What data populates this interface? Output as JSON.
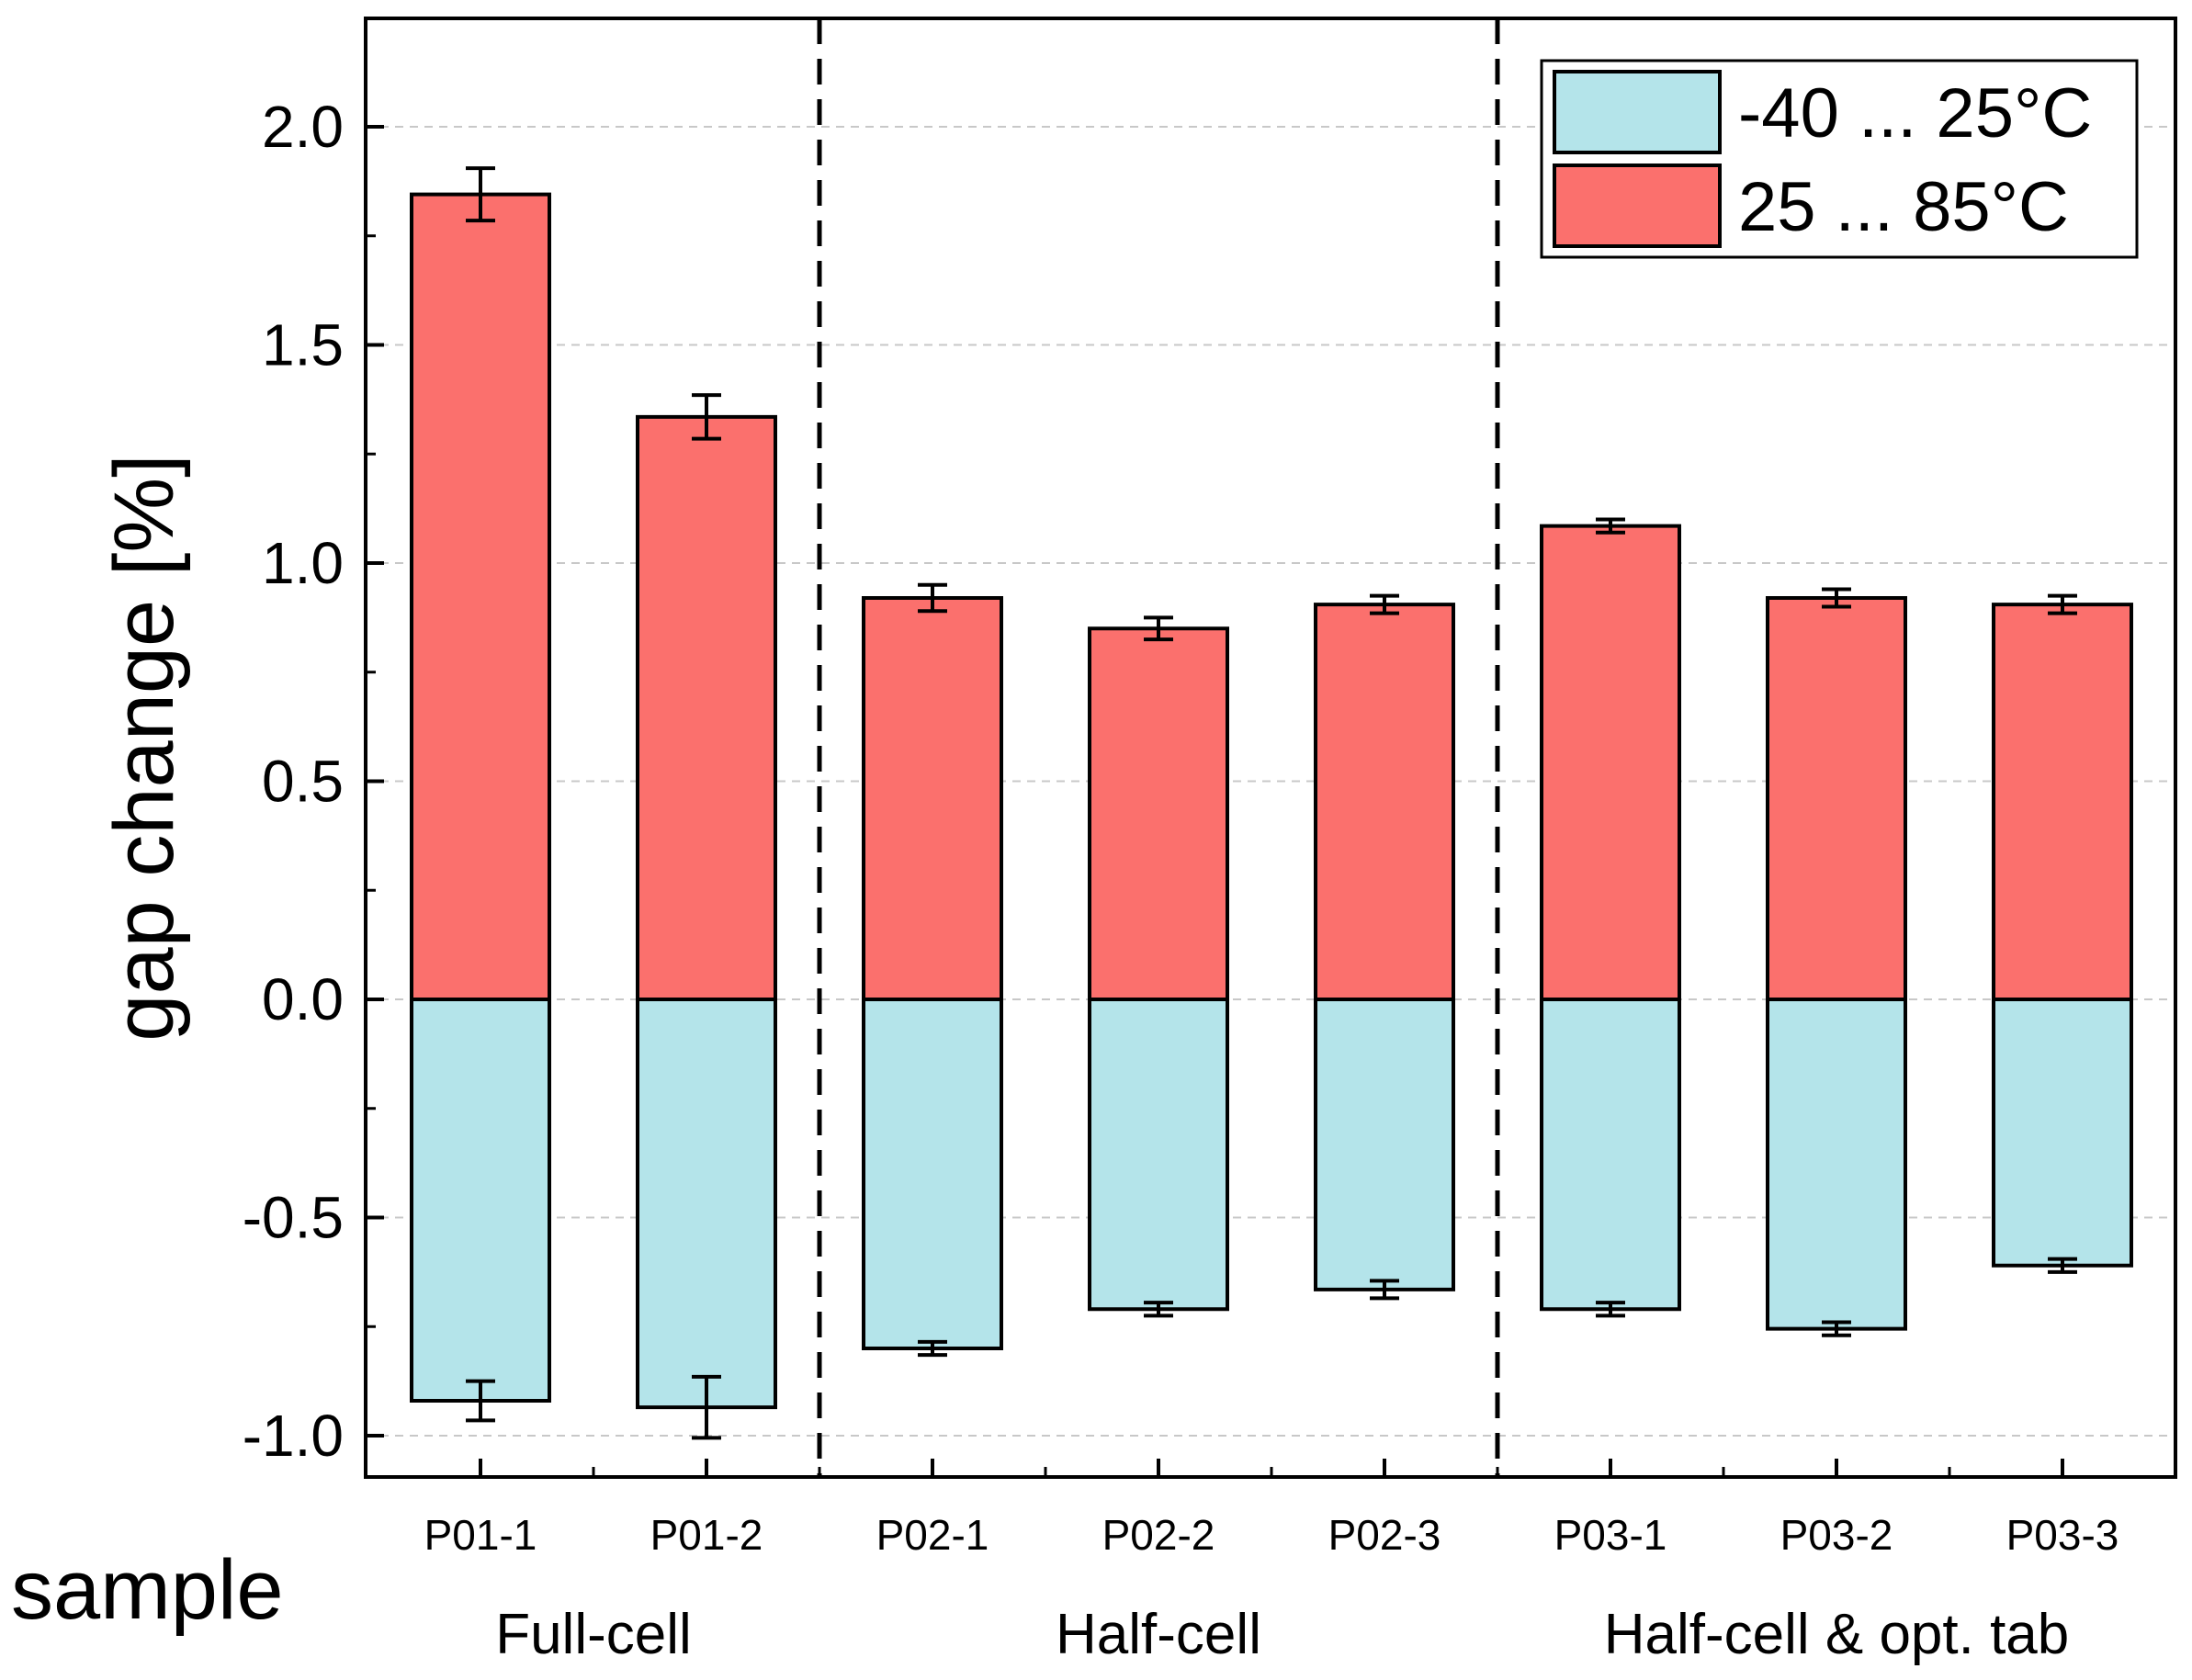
{
  "chart_data": {
    "type": "bar",
    "stacked": true,
    "title": "",
    "ylabel": "gap change [%]",
    "xlabel": "sample",
    "ylim": [
      -1.1,
      2.25
    ],
    "yticks": [
      -1.0,
      -0.5,
      0.0,
      0.5,
      1.0,
      1.5,
      2.0
    ],
    "ytick_labels": [
      "-1.0",
      "-0.5",
      "0.0",
      "0.5",
      "1.0",
      "1.5",
      "2.0"
    ],
    "grid": "horizontal dashed",
    "categories": [
      "P01-1",
      "P01-2",
      "P02-1",
      "P02-2",
      "P02-3",
      "P03-1",
      "P03-2",
      "P03-3"
    ],
    "groups": [
      {
        "label": "Full-cell",
        "members": [
          "P01-1",
          "P01-2"
        ]
      },
      {
        "label": "Half-cell",
        "members": [
          "P02-1",
          "P02-2",
          "P02-3"
        ]
      },
      {
        "label": "Half-cell & opt. tab",
        "members": [
          "P03-1",
          "P03-2",
          "P03-3"
        ]
      }
    ],
    "legend_position": "top-right",
    "series": [
      {
        "name": "-40 ... 25°C",
        "color": "#b4e4ea",
        "values": [
          -0.92,
          -0.935,
          -0.8,
          -0.71,
          -0.665,
          -0.71,
          -0.755,
          -0.61
        ],
        "errors": [
          0.045,
          0.07,
          0.015,
          0.015,
          0.02,
          0.015,
          0.015,
          0.015
        ]
      },
      {
        "name": "25 ... 85°C",
        "color": "#fb706d",
        "values": [
          1.845,
          1.335,
          0.92,
          0.85,
          0.905,
          1.085,
          0.92,
          0.905
        ],
        "errors": [
          0.06,
          0.05,
          0.03,
          0.025,
          0.02,
          0.015,
          0.02,
          0.02
        ]
      }
    ]
  }
}
